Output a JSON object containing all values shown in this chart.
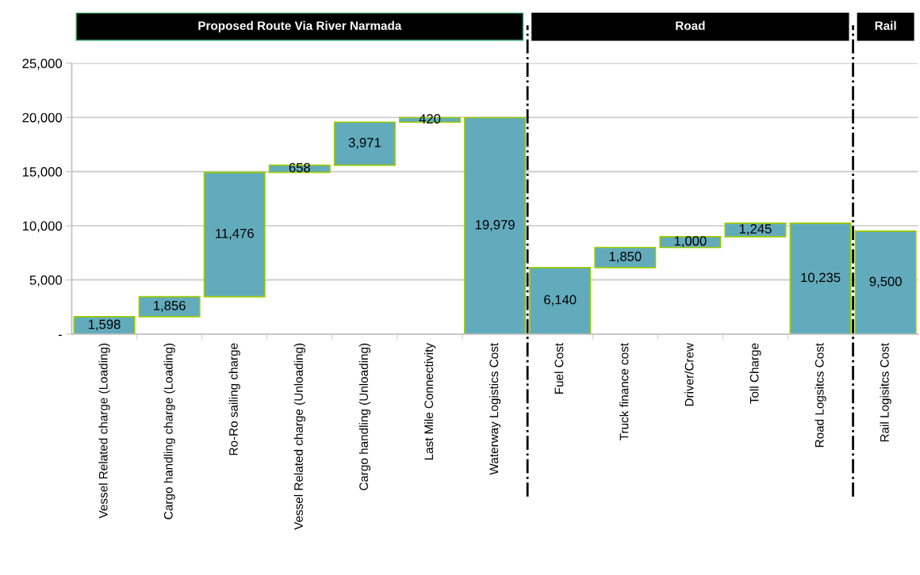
{
  "chart_data": {
    "type": "bar",
    "categories": [
      "Vessel Related charge (Loading)",
      "Cargo handling charge (Loading)",
      "Ro-Ro sailing charge",
      "Vessel Related charge (Unloading)",
      "Cargo handling (Unloading)",
      "Last Mile Connectivity",
      "Waterway Logistics Cost",
      "Fuel Cost",
      "Truck finance cost",
      "Driver/Crew",
      "Toll Charge",
      "Road Logsitcs Cost",
      "Rail Logisitcs Cost"
    ],
    "values": [
      1598,
      1856,
      11476,
      658,
      3971,
      420,
      19979,
      6140,
      1850,
      1000,
      1245,
      10235,
      9500
    ],
    "base": [
      0,
      1598,
      3454,
      14930,
      15588,
      19559,
      0,
      0,
      6140,
      7990,
      8990,
      0,
      0
    ],
    "value_labels": [
      "1,598",
      "1,856",
      "11,476",
      "658",
      "3,971",
      "420",
      "19,979",
      "6,140",
      "1,850",
      "1,000",
      "1,245",
      "10,235",
      "9,500"
    ],
    "color": "#62abbc",
    "ylim": [
      0,
      25000
    ],
    "yticks": [
      {
        "value": 0,
        "label": "-"
      },
      {
        "value": 5000,
        "label": "5,000"
      },
      {
        "value": 10000,
        "label": "10,000"
      },
      {
        "value": 15000,
        "label": "15,000"
      },
      {
        "value": 20000,
        "label": "20,000"
      },
      {
        "value": 25000,
        "label": "25,000"
      }
    ],
    "grid": "y",
    "annotations": [
      "Proposed Route Via River Narmada",
      "Road",
      "Rail"
    ]
  }
}
